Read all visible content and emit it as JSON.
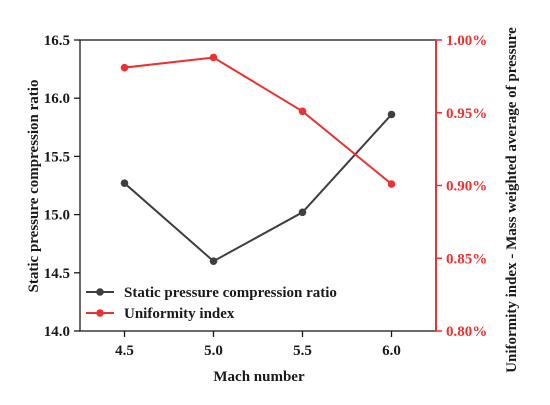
{
  "chart_data": {
    "type": "line",
    "xlabel": "Mach number",
    "ylabel_left": "Static pressure compression ratio",
    "ylabel_right": "Uniformity index - Mass weighted average of pressure",
    "x": [
      4.5,
      5.0,
      5.5,
      6.0
    ],
    "x_tick_labels": [
      "4.5",
      "5.0",
      "5.5",
      "6.0"
    ],
    "xlim": [
      4.25,
      6.25
    ],
    "ylim_left": [
      14.0,
      16.5
    ],
    "y_left_ticks": [
      "14.0",
      "14.5",
      "15.0",
      "15.5",
      "16.0",
      "16.5"
    ],
    "ylim_right": [
      0.8,
      1.0
    ],
    "y_right_ticks": [
      "0.80%",
      "0.85%",
      "0.90%",
      "0.95%",
      "1.00%"
    ],
    "grid": false,
    "legend_position": "bottom-left",
    "series": [
      {
        "name": "Static pressure compression ratio",
        "axis": "left",
        "color": "#3f3f3f",
        "values": [
          15.27,
          14.6,
          15.02,
          15.86
        ]
      },
      {
        "name": "Uniformity index",
        "axis": "right",
        "color": "#ee3030",
        "values": [
          0.981,
          0.988,
          0.951,
          0.901
        ]
      }
    ]
  }
}
